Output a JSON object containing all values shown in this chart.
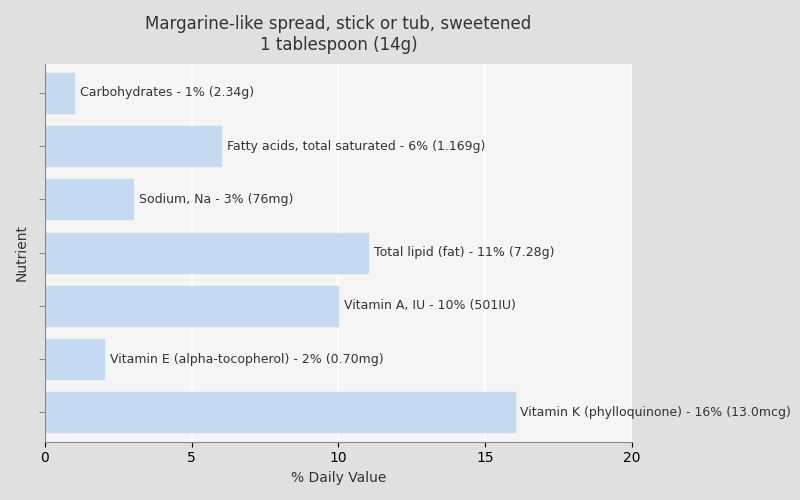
{
  "title_line1": "Margarine-like spread, stick or tub, sweetened",
  "title_line2": "1 tablespoon (14g)",
  "xlabel": "% Daily Value",
  "ylabel": "Nutrient",
  "background_color": "#e0e0e0",
  "plot_bg_color": "#f5f5f5",
  "bar_color": "#c5d9f1",
  "xlim": [
    0,
    20
  ],
  "xticks": [
    0,
    5,
    10,
    15,
    20
  ],
  "nutrients_top_to_bottom": [
    "Carbohydrates - 1% (2.34g)",
    "Fatty acids, total saturated - 6% (1.169g)",
    "Sodium, Na - 3% (76mg)",
    "Total lipid (fat) - 11% (7.28g)",
    "Vitamin A, IU - 10% (501IU)",
    "Vitamin E (alpha-tocopherol) - 2% (0.70mg)",
    "Vitamin K (phylloquinone) - 16% (13.0mcg)"
  ],
  "values_top_to_bottom": [
    1,
    6,
    3,
    11,
    10,
    2,
    16
  ],
  "bar_height": 0.75,
  "title_fontsize": 12,
  "label_fontsize": 9,
  "axis_label_fontsize": 10,
  "tick_fontsize": 10,
  "grid_color": "#ffffff",
  "text_color": "#333333"
}
